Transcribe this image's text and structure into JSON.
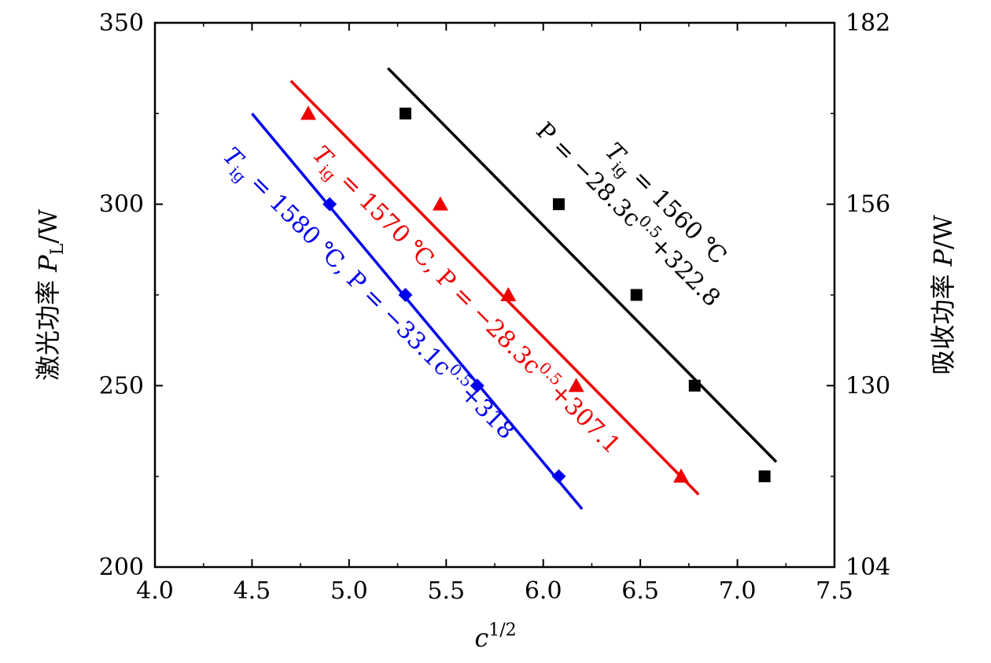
{
  "chart_data": {
    "type": "scatter",
    "xlabel": "c^{1/2}",
    "ylabel": "激光功率 P_L/W",
    "y2label": "吸收功率 P/W",
    "xlim": [
      4.0,
      7.5
    ],
    "ylim": [
      200,
      350
    ],
    "y2lim": [
      104,
      182
    ],
    "xticks": [
      "4.0",
      "4.5",
      "5.0",
      "5.5",
      "6.0",
      "6.5",
      "7.0",
      "7.5"
    ],
    "yticks": [
      "200",
      "250",
      "300",
      "350"
    ],
    "y2ticks": [
      "104",
      "130",
      "156",
      "182"
    ],
    "grid": false,
    "series": [
      {
        "name": "T_ig = 1560 ℃",
        "equation": "P = −28.3c^{0.5}+322.8",
        "color": "#000000",
        "marker": "square",
        "x": [
          5.29,
          6.08,
          6.48,
          6.78,
          7.14
        ],
        "y": [
          325,
          300,
          275,
          250,
          225
        ],
        "fit_x": [
          5.2,
          7.2
        ],
        "fit_y": [
          337.5,
          229.0
        ]
      },
      {
        "name": "T_ig = 1570 ℃",
        "equation": "P = −28.3c^{0.5}+307.1",
        "color": "#ee0000",
        "marker": "triangle",
        "x": [
          4.79,
          5.47,
          5.82,
          6.17,
          6.71
        ],
        "y": [
          325,
          300,
          275,
          250,
          225
        ],
        "fit_x": [
          4.7,
          6.8
        ],
        "fit_y": [
          334.0,
          220.0
        ]
      },
      {
        "name": "T_ig = 1580 ℃",
        "equation": "P = −33.1c^{0.5}+318",
        "color": "#0000ee",
        "marker": "diamond",
        "x": [
          4.9,
          5.29,
          5.66,
          6.08
        ],
        "y": [
          300,
          275,
          250,
          225
        ],
        "fit_x": [
          4.5,
          6.2
        ],
        "fit_y": [
          325.0,
          216.0
        ]
      }
    ],
    "annotations": {
      "black": {
        "prefix": "T",
        "sub": "ig",
        "mid": " = 1560 ℃",
        "line2a": "P = −28.3c",
        "sup": "0.5",
        "line2b": "+322.8"
      },
      "red": {
        "prefix": "T",
        "sub": "ig",
        "mid": " = 1570 ℃, P = −28.3c",
        "sup": "0.5",
        "tail": "+307.1"
      },
      "blue": {
        "prefix": "T",
        "sub": "ig",
        "mid": " = 1580 ℃, P = −33.1c",
        "sup": "0.5",
        "tail": "+318"
      }
    }
  }
}
